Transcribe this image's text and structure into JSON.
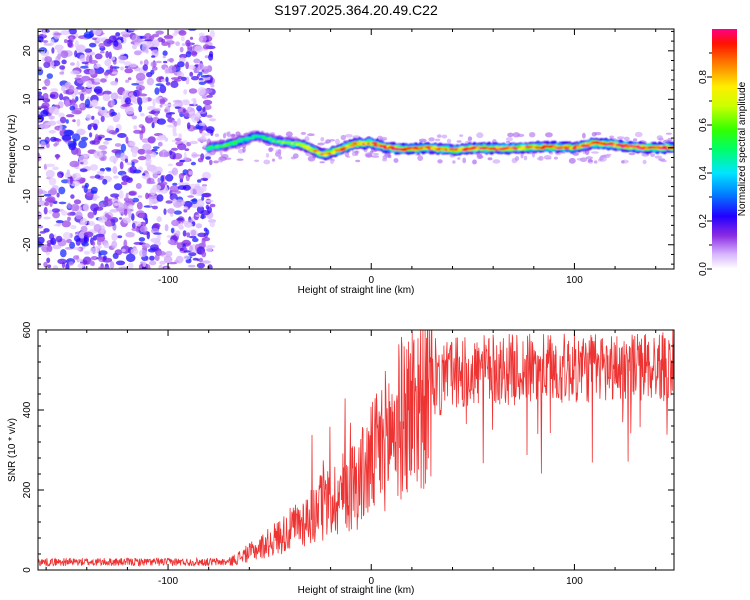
{
  "title": "S197.2025.364.20.49.C22",
  "chart_data": [
    {
      "id": "spectrogram",
      "type": "heatmap",
      "xlabel": "Height of straight line (km)",
      "ylabel": "Frequency (Hz)",
      "xlim": [
        -164,
        149
      ],
      "ylim": [
        -25,
        24.5
      ],
      "x_ticks": [
        -100,
        0,
        100
      ],
      "y_ticks": [
        -20,
        -10,
        0,
        10,
        20
      ],
      "colorbar": {
        "label": "Normalized spectral amplitude",
        "range": [
          0,
          1
        ],
        "ticks": [
          0.0,
          0.2,
          0.4,
          0.6,
          0.8
        ]
      },
      "noise_region_x": [
        -164,
        -78
      ],
      "tone_track": [
        {
          "x": -80,
          "f": 0.0,
          "a": 0.5
        },
        {
          "x": -72,
          "f": 0.5,
          "a": 0.55
        },
        {
          "x": -64,
          "f": 1.5,
          "a": 0.5
        },
        {
          "x": -56,
          "f": 2.5,
          "a": 0.45
        },
        {
          "x": -48,
          "f": 1.5,
          "a": 0.55
        },
        {
          "x": -40,
          "f": 1.0,
          "a": 0.6
        },
        {
          "x": -32,
          "f": 0.3,
          "a": 0.7
        },
        {
          "x": -24,
          "f": -1.5,
          "a": 0.8
        },
        {
          "x": -16,
          "f": -0.5,
          "a": 0.85
        },
        {
          "x": -8,
          "f": 0.8,
          "a": 0.85
        },
        {
          "x": 0,
          "f": 1.0,
          "a": 0.9
        },
        {
          "x": 6,
          "f": 0.2,
          "a": 0.85
        },
        {
          "x": 16,
          "f": -0.3,
          "a": 0.9
        },
        {
          "x": 28,
          "f": 0.0,
          "a": 0.85
        },
        {
          "x": 40,
          "f": -0.5,
          "a": 0.85
        },
        {
          "x": 52,
          "f": 0.0,
          "a": 0.9
        },
        {
          "x": 64,
          "f": -0.2,
          "a": 0.9
        },
        {
          "x": 76,
          "f": 0.0,
          "a": 0.85
        },
        {
          "x": 88,
          "f": 0.2,
          "a": 0.9
        },
        {
          "x": 100,
          "f": 0.0,
          "a": 0.85
        },
        {
          "x": 110,
          "f": 1.0,
          "a": 0.9
        },
        {
          "x": 122,
          "f": 0.5,
          "a": 0.9
        },
        {
          "x": 135,
          "f": 0.0,
          "a": 0.95
        },
        {
          "x": 149,
          "f": 0.0,
          "a": 0.95
        }
      ]
    },
    {
      "id": "snr",
      "type": "line",
      "xlabel": "Height of straight line (km)",
      "ylabel": "SNR (10 * v/v)",
      "xlim": [
        -164,
        149
      ],
      "ylim": [
        0,
        600
      ],
      "x_ticks": [
        -100,
        0,
        100
      ],
      "y_ticks": [
        0,
        200,
        400,
        600
      ],
      "color": "#ee3333",
      "trend": [
        {
          "x": -164,
          "y": 20
        },
        {
          "x": -70,
          "y": 20
        },
        {
          "x": -55,
          "y": 55
        },
        {
          "x": -40,
          "y": 100
        },
        {
          "x": -20,
          "y": 170
        },
        {
          "x": -5,
          "y": 230
        },
        {
          "x": 10,
          "y": 350
        },
        {
          "x": 25,
          "y": 440
        },
        {
          "x": 40,
          "y": 490
        },
        {
          "x": 60,
          "y": 500
        },
        {
          "x": 149,
          "y": 510
        }
      ]
    }
  ]
}
